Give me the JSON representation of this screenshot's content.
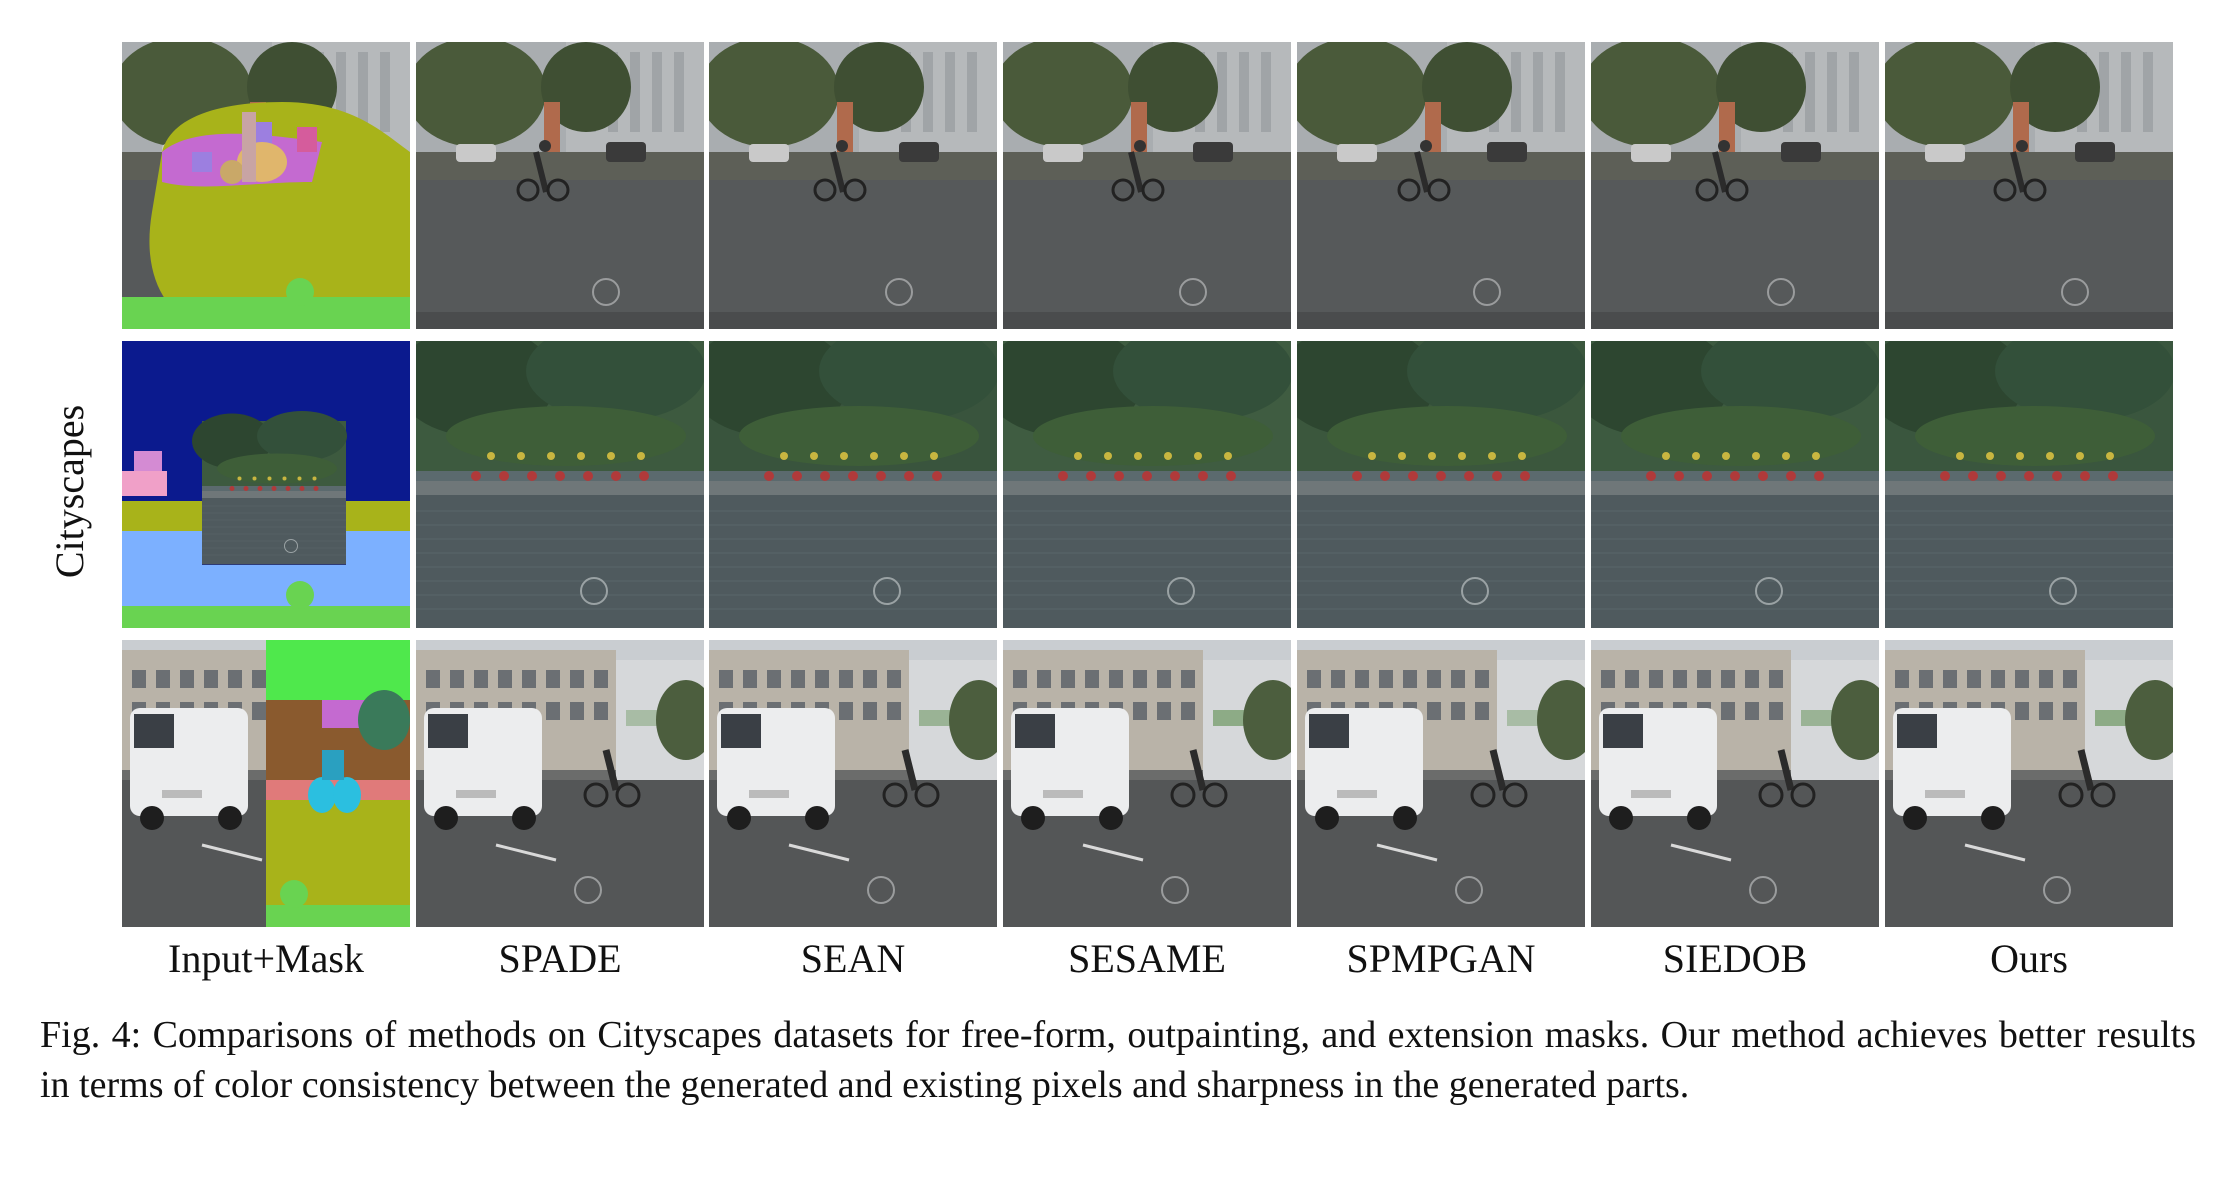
{
  "row_group_label": "Cityscapes",
  "columns": [
    {
      "label": "Input+Mask"
    },
    {
      "label": "SPADE"
    },
    {
      "label": "SEAN"
    },
    {
      "label": "SESAME"
    },
    {
      "label": "SPMPGAN"
    },
    {
      "label": "SIEDOB"
    },
    {
      "label": "Ours"
    }
  ],
  "rows": [
    {
      "mask_type": "free-form",
      "scene": "street-cyclist"
    },
    {
      "mask_type": "outpainting",
      "scene": "park-road"
    },
    {
      "mask_type": "extension",
      "scene": "van-buildings"
    }
  ],
  "caption": {
    "prefix": "Fig. 4:",
    "text": "Comparisons of methods on Cityscapes datasets for free-form, outpainting, and extension masks. Our method achieves better results in terms of color consistency between the generated and existing pixels and sharpness in the generated parts."
  }
}
